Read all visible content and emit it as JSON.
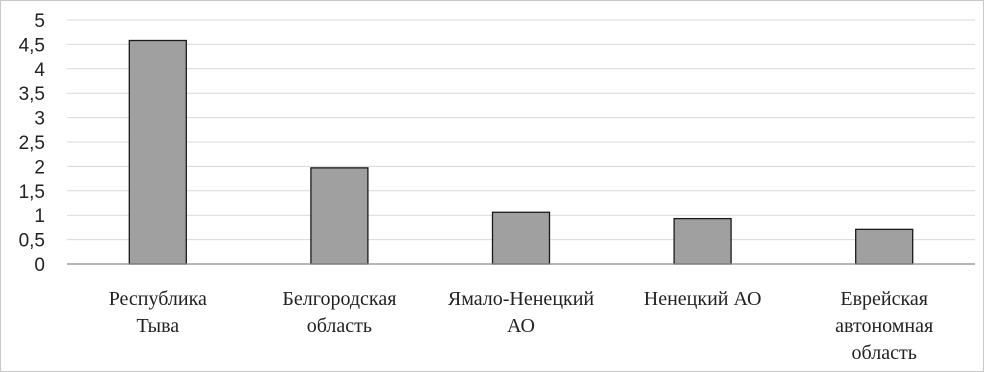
{
  "chart_data": {
    "type": "bar",
    "categories": [
      [
        "Республика",
        "Тыва"
      ],
      [
        "Белгородская",
        "область"
      ],
      [
        "Ямало-Ненецкий",
        "АО"
      ],
      [
        "Ненецкий АО"
      ],
      [
        "Еврейская",
        "автономная",
        "область"
      ]
    ],
    "values": [
      4.58,
      1.97,
      1.06,
      0.93,
      0.71
    ],
    "ylim": [
      0,
      5
    ],
    "yticks": [
      "0",
      "0,5",
      "1",
      "1,5",
      "2",
      "2,5",
      "3",
      "3,5",
      "4",
      "4,5",
      "5"
    ],
    "grid": true,
    "colors": {
      "bar": "#a0a0a0",
      "bar_outline": "#1a1a1a",
      "grid": "#d9d9d9"
    }
  }
}
